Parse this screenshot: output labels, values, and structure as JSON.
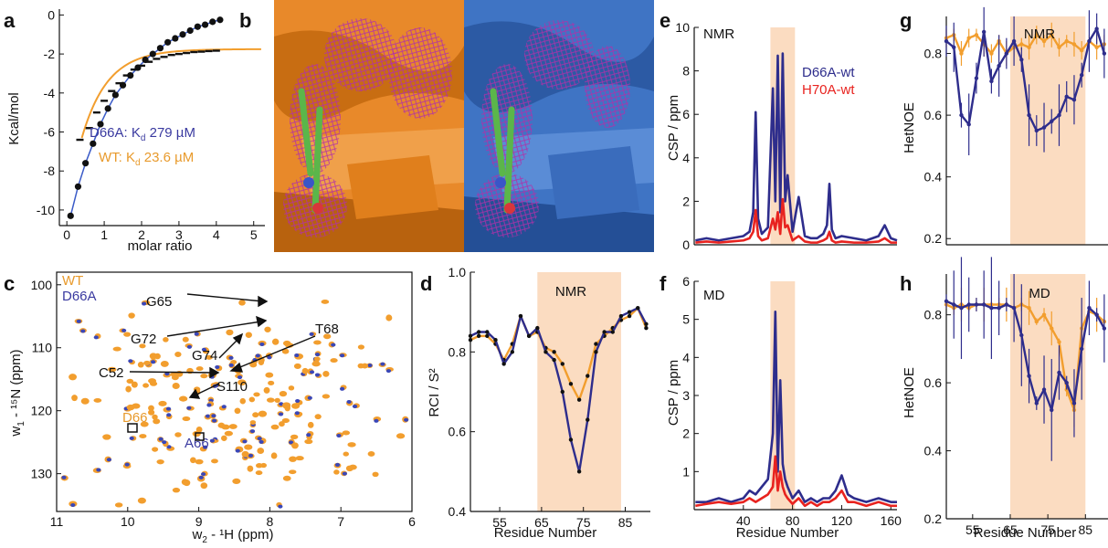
{
  "colors": {
    "wt": "#f29e2e",
    "mutant": "#2e2d8c",
    "red": "#e8231f",
    "shade": "#fbdcc1",
    "navy_text": "#3a3aa0",
    "wt_text": "#e89a2c"
  },
  "panels": {
    "a": {
      "letter": "a",
      "ylabel": "Kcal/mol",
      "xlabel": "molar ratio",
      "xticks": [
        "0",
        "1",
        "2",
        "3",
        "4",
        "5"
      ],
      "yticks": [
        "0",
        "-2",
        "-4",
        "-6",
        "-8",
        "-10"
      ],
      "legend_d66a": "D66A: K",
      "legend_d66a_sub": "d",
      "legend_d66a_val": " 279 µM",
      "legend_wt": "WT: K",
      "legend_wt_sub": "d",
      "legend_wt_val": " 23.6 µM"
    },
    "b": {
      "letter": "b"
    },
    "c": {
      "letter": "c",
      "legend_wt": "WT",
      "legend_d66a": "D66A",
      "xlabel_main": "w",
      "xlabel_sub": "2",
      "xlabel_rest": " - ¹H (ppm)",
      "ylabel_main": "w",
      "ylabel_sub": "1",
      "ylabel_rest": " - ¹⁵N (ppm)",
      "xticks": [
        "11",
        "10",
        "9",
        "8",
        "7",
        "6"
      ],
      "yticks": [
        "100",
        "110",
        "120",
        "130"
      ],
      "labels": [
        "G65",
        "G72",
        "T68",
        "G74",
        "C52",
        "S110",
        "D66",
        "A66"
      ]
    },
    "d": {
      "letter": "d",
      "ylabel": "RCI / S²",
      "xlabel": "Residue Number",
      "region_label": "NMR",
      "xticks": [
        "55",
        "65",
        "75",
        "85"
      ],
      "yticks": [
        "0.4",
        "0.6",
        "0.8",
        "1.0"
      ]
    },
    "e": {
      "letter": "e",
      "ylabel": "CSP / ppm",
      "tag": "NMR",
      "legend_1": "D66A-wt",
      "legend_2": "H70A-wt",
      "yticks": [
        "0",
        "2",
        "4",
        "6",
        "8",
        "10"
      ]
    },
    "f": {
      "letter": "f",
      "ylabel": "CSP / ppm",
      "xlabel": "Residue Number",
      "tag": "MD",
      "xticks": [
        "40",
        "80",
        "120",
        "160"
      ],
      "yticks": [
        "1",
        "2",
        "3",
        "4",
        "5",
        "6"
      ]
    },
    "g": {
      "letter": "g",
      "ylabel": "HetNOE",
      "region_label": "NMR",
      "yticks": [
        "0.2",
        "0.4",
        "0.6",
        "0.8"
      ]
    },
    "h": {
      "letter": "h",
      "ylabel": "HetNOE",
      "xlabel": "Residue Number",
      "region_label": "MD",
      "xticks": [
        "55",
        "65",
        "75",
        "85"
      ],
      "yticks": [
        "0.2",
        "0.4",
        "0.6",
        "0.8"
      ]
    }
  },
  "chart_data": [
    {
      "panel": "a",
      "type": "scatter",
      "xlabel": "molar ratio",
      "ylabel": "Kcal/mol",
      "xlim": [
        -0.2,
        5.3
      ],
      "ylim": [
        -10.8,
        0.3
      ],
      "series": [
        {
          "name": "D66A: Kd 279 µM",
          "x": [
            0.1,
            0.3,
            0.5,
            0.7,
            0.9,
            1.1,
            1.3,
            1.5,
            1.7,
            1.9,
            2.1,
            2.3,
            2.5,
            2.7,
            2.9,
            3.1,
            3.3,
            3.5,
            3.7,
            3.9,
            4.1
          ],
          "y": [
            -10.3,
            -8.8,
            -7.6,
            -6.6,
            -5.6,
            -4.8,
            -4.1,
            -3.6,
            -3.1,
            -2.7,
            -2.3,
            -2.0,
            -1.7,
            -1.4,
            -1.2,
            -1.0,
            -0.8,
            -0.6,
            -0.5,
            -0.35,
            -0.25
          ]
        },
        {
          "name": "WT: Kd 23.6 µM",
          "x": [
            0.35,
            0.6,
            0.8,
            1.0,
            1.2,
            1.4,
            1.6,
            1.8,
            2.0,
            2.2,
            2.4,
            2.6,
            2.8,
            3.0,
            3.2,
            3.4,
            3.6,
            3.8,
            4.0
          ],
          "y": [
            -6.4,
            -5.8,
            -5.0,
            -4.4,
            -3.9,
            -3.5,
            -3.1,
            -2.8,
            -2.6,
            -2.4,
            -2.25,
            -2.15,
            -2.05,
            -2.0,
            -1.95,
            -1.9,
            -1.88,
            -1.85,
            -1.83
          ]
        }
      ]
    },
    {
      "panel": "d",
      "type": "line",
      "xlabel": "Residue Number",
      "ylabel": "RCI / S²",
      "xlim": [
        48,
        91
      ],
      "ylim": [
        0.4,
        1.0
      ],
      "shaded_region": [
        64,
        84
      ],
      "series": [
        {
          "name": "WT",
          "x": [
            48,
            50,
            52,
            54,
            56,
            58,
            60,
            62,
            64,
            66,
            68,
            70,
            72,
            74,
            76,
            78,
            80,
            82,
            84,
            86,
            88,
            90
          ],
          "y": [
            0.83,
            0.84,
            0.84,
            0.82,
            0.78,
            0.82,
            0.89,
            0.84,
            0.85,
            0.81,
            0.8,
            0.77,
            0.72,
            0.68,
            0.74,
            0.82,
            0.84,
            0.86,
            0.88,
            0.89,
            0.91,
            0.86
          ]
        },
        {
          "name": "D66A",
          "x": [
            48,
            50,
            52,
            54,
            56,
            58,
            60,
            62,
            64,
            66,
            68,
            70,
            72,
            74,
            76,
            78,
            80,
            82,
            84,
            86,
            88,
            90
          ],
          "y": [
            0.84,
            0.85,
            0.85,
            0.83,
            0.77,
            0.8,
            0.89,
            0.84,
            0.86,
            0.8,
            0.78,
            0.7,
            0.58,
            0.5,
            0.63,
            0.8,
            0.85,
            0.85,
            0.89,
            0.9,
            0.91,
            0.87
          ]
        }
      ]
    },
    {
      "panel": "e",
      "type": "line",
      "ylabel": "CSP / ppm",
      "xlim": [
        0,
        165
      ],
      "ylim": [
        0,
        10
      ],
      "shaded_region": [
        62,
        82
      ],
      "series": [
        {
          "name": "D66A-wt",
          "x": [
            1,
            10,
            20,
            30,
            40,
            45,
            48,
            50,
            52,
            55,
            60,
            64,
            66,
            68,
            70,
            72,
            74,
            76,
            80,
            85,
            90,
            95,
            100,
            105,
            108,
            110,
            112,
            115,
            120,
            130,
            140,
            150,
            155,
            160,
            165
          ],
          "y": [
            0.2,
            0.3,
            0.2,
            0.3,
            0.4,
            0.6,
            1.5,
            6.1,
            1.2,
            0.5,
            0.8,
            7.2,
            2.0,
            8.7,
            1.5,
            8.8,
            2.0,
            3.2,
            0.6,
            2.2,
            0.4,
            0.3,
            0.3,
            0.5,
            0.9,
            2.8,
            0.7,
            0.3,
            0.4,
            0.3,
            0.2,
            0.4,
            0.9,
            0.3,
            0.2
          ]
        },
        {
          "name": "H70A-wt",
          "x": [
            1,
            10,
            20,
            30,
            40,
            45,
            48,
            50,
            52,
            55,
            60,
            64,
            66,
            68,
            70,
            72,
            74,
            76,
            80,
            85,
            90,
            95,
            100,
            105,
            108,
            110,
            112,
            115,
            120,
            130,
            140,
            150,
            155,
            160,
            165
          ],
          "y": [
            0.1,
            0.15,
            0.1,
            0.15,
            0.2,
            0.3,
            0.6,
            1.6,
            0.4,
            0.2,
            0.3,
            1.2,
            0.7,
            1.5,
            0.5,
            2.1,
            0.8,
            0.9,
            0.2,
            0.4,
            0.15,
            0.1,
            0.1,
            0.2,
            0.3,
            0.6,
            0.2,
            0.1,
            0.15,
            0.1,
            0.1,
            0.15,
            0.3,
            0.1,
            0.1
          ]
        }
      ]
    },
    {
      "panel": "f",
      "type": "line",
      "xlabel": "Residue Number",
      "ylabel": "CSP / ppm",
      "xlim": [
        0,
        165
      ],
      "ylim": [
        0,
        6
      ],
      "shaded_region": [
        62,
        82
      ],
      "series": [
        {
          "name": "D66A-wt",
          "x": [
            1,
            10,
            20,
            30,
            40,
            45,
            50,
            55,
            60,
            64,
            66,
            68,
            70,
            72,
            74,
            76,
            80,
            85,
            90,
            95,
            100,
            105,
            110,
            115,
            120,
            125,
            130,
            140,
            150,
            160,
            165
          ],
          "y": [
            0.2,
            0.2,
            0.3,
            0.2,
            0.3,
            0.5,
            0.4,
            0.6,
            0.8,
            2.0,
            5.2,
            1.0,
            3.4,
            1.2,
            0.8,
            0.6,
            0.3,
            0.5,
            0.2,
            0.3,
            0.2,
            0.3,
            0.3,
            0.5,
            0.9,
            0.4,
            0.3,
            0.2,
            0.3,
            0.2,
            0.2
          ]
        },
        {
          "name": "H70A-wt",
          "x": [
            1,
            10,
            20,
            30,
            40,
            45,
            50,
            55,
            60,
            64,
            66,
            68,
            70,
            72,
            74,
            76,
            80,
            85,
            90,
            95,
            100,
            105,
            110,
            115,
            120,
            125,
            130,
            140,
            150,
            160,
            165
          ],
          "y": [
            0.1,
            0.15,
            0.2,
            0.15,
            0.2,
            0.3,
            0.2,
            0.3,
            0.4,
            0.6,
            1.4,
            0.5,
            1.0,
            0.6,
            0.4,
            0.3,
            0.15,
            0.3,
            0.1,
            0.2,
            0.1,
            0.2,
            0.2,
            0.3,
            0.5,
            0.2,
            0.2,
            0.1,
            0.2,
            0.1,
            0.1
          ]
        }
      ]
    },
    {
      "panel": "g",
      "type": "line",
      "ylabel": "HetNOE",
      "xlim": [
        48,
        91
      ],
      "ylim": [
        0.18,
        0.92
      ],
      "shaded_region": [
        65,
        85
      ],
      "series": [
        {
          "name": "WT",
          "x": [
            48,
            50,
            52,
            54,
            56,
            58,
            60,
            62,
            64,
            66,
            68,
            70,
            72,
            74,
            76,
            78,
            80,
            82,
            84,
            86,
            88,
            90
          ],
          "y": [
            0.85,
            0.86,
            0.8,
            0.85,
            0.86,
            0.83,
            0.8,
            0.84,
            0.8,
            0.82,
            0.83,
            0.82,
            0.86,
            0.84,
            0.86,
            0.82,
            0.84,
            0.83,
            0.81,
            0.84,
            0.82,
            0.83
          ]
        },
        {
          "name": "D66A",
          "x": [
            48,
            50,
            52,
            54,
            56,
            58,
            60,
            62,
            64,
            66,
            68,
            70,
            72,
            74,
            76,
            78,
            80,
            82,
            84,
            86,
            88,
            90
          ],
          "y": [
            0.84,
            0.82,
            0.6,
            0.57,
            0.72,
            0.87,
            0.71,
            0.76,
            0.8,
            0.84,
            0.78,
            0.6,
            0.55,
            0.56,
            0.58,
            0.6,
            0.66,
            0.65,
            0.73,
            0.84,
            0.88,
            0.8
          ]
        }
      ]
    },
    {
      "panel": "h",
      "type": "line",
      "xlabel": "Residue Number",
      "ylabel": "HetNOE",
      "xlim": [
        48,
        91
      ],
      "ylim": [
        0.2,
        0.92
      ],
      "shaded_region": [
        65,
        85
      ],
      "series": [
        {
          "name": "WT",
          "x": [
            48,
            50,
            52,
            54,
            56,
            58,
            60,
            62,
            64,
            66,
            68,
            70,
            72,
            74,
            76,
            78,
            80,
            82,
            84,
            86,
            88,
            90
          ],
          "y": [
            0.83,
            0.82,
            0.83,
            0.82,
            0.83,
            0.83,
            0.83,
            0.83,
            0.83,
            0.82,
            0.83,
            0.82,
            0.78,
            0.8,
            0.76,
            0.72,
            0.58,
            0.52,
            0.76,
            0.81,
            0.8,
            0.78
          ]
        },
        {
          "name": "D66A",
          "x": [
            48,
            50,
            52,
            54,
            56,
            58,
            60,
            62,
            64,
            66,
            68,
            70,
            72,
            74,
            76,
            78,
            80,
            82,
            84,
            86,
            88,
            90
          ],
          "y": [
            0.84,
            0.83,
            0.82,
            0.83,
            0.83,
            0.83,
            0.82,
            0.82,
            0.83,
            0.82,
            0.74,
            0.62,
            0.54,
            0.58,
            0.52,
            0.63,
            0.6,
            0.54,
            0.7,
            0.82,
            0.8,
            0.76
          ]
        }
      ]
    }
  ]
}
